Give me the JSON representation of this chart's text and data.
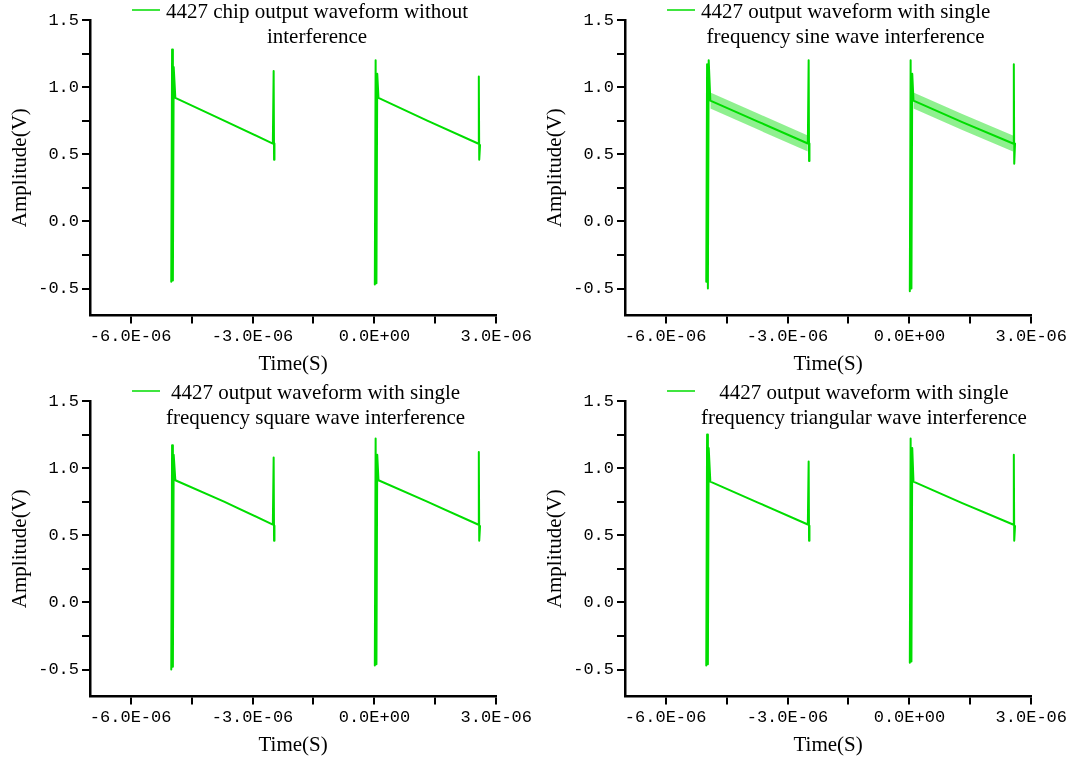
{
  "chart_data": [
    {
      "type": "line",
      "xlabel": "Time(S)",
      "ylabel": "Amplitude(V)",
      "legend": "top",
      "grid": false,
      "xlim": [
        -7e-06,
        3e-06
      ],
      "ylim": [
        -0.7,
        1.5
      ],
      "xticks": [
        {
          "value": -6e-06,
          "label": "-6.0E-06"
        },
        {
          "value": -4.5e-06,
          "label": null
        },
        {
          "value": -3e-06,
          "label": "-3.0E-06"
        },
        {
          "value": -1.5e-06,
          "label": null
        },
        {
          "value": 0,
          "label": "0.0E+00"
        },
        {
          "value": 1.5e-06,
          "label": null
        },
        {
          "value": 3e-06,
          "label": "3.0E-06"
        }
      ],
      "yticks": [
        {
          "value": -0.5,
          "label": "-0.5"
        },
        {
          "value": -0.25,
          "label": null
        },
        {
          "value": 0,
          "label": "0.0"
        },
        {
          "value": 0.25,
          "label": null
        },
        {
          "value": 0.5,
          "label": "0.5"
        },
        {
          "value": 0.75,
          "label": null
        },
        {
          "value": 1,
          "label": "1.0"
        },
        {
          "value": 1.25,
          "label": null
        },
        {
          "value": 1.5,
          "label": "1.5"
        }
      ],
      "series": [
        {
          "name": "4427 chip output waveform without interference",
          "color": "#00dd00",
          "x": [
            -5e-06,
            -4.98e-06,
            -4.96e-06,
            -4.94e-06,
            -4.9e-06,
            -3.7e-06,
            -2.5e-06,
            -2.48e-06,
            -2.47e-06,
            -2.46e-06,
            -1.2e-06,
            1e-08,
            3e-08,
            5e-08,
            7e-08,
            1e-07,
            1.3e-06,
            2.55e-06,
            2.57e-06,
            2.58e-06,
            2.6e-06
          ],
          "values": [
            -0.45,
            1.28,
            -0.44,
            1.15,
            0.92,
            0.75,
            0.58,
            1.12,
            0.46,
            0.58,
            null,
            -0.47,
            1.2,
            -0.46,
            1.1,
            0.92,
            0.75,
            0.58,
            1.08,
            0.46,
            0.57
          ]
        }
      ]
    },
    {
      "type": "line",
      "xlabel": "Time(S)",
      "ylabel": "Amplitude(V)",
      "legend": "top",
      "grid": false,
      "xlim": [
        -7e-06,
        3e-06
      ],
      "ylim": [
        -0.7,
        1.5
      ],
      "xticks": [
        {
          "value": -6e-06,
          "label": "-6.0E-06"
        },
        {
          "value": -4.5e-06,
          "label": null
        },
        {
          "value": -3e-06,
          "label": "-3.0E-06"
        },
        {
          "value": -1.5e-06,
          "label": null
        },
        {
          "value": 0,
          "label": "0.0E+00"
        },
        {
          "value": 1.5e-06,
          "label": null
        },
        {
          "value": 3e-06,
          "label": "3.0E-06"
        }
      ],
      "yticks": [
        {
          "value": -0.5,
          "label": "-0.5"
        },
        {
          "value": -0.25,
          "label": null
        },
        {
          "value": 0,
          "label": "0.0"
        },
        {
          "value": 0.25,
          "label": null
        },
        {
          "value": 0.5,
          "label": "0.5"
        },
        {
          "value": 0.75,
          "label": null
        },
        {
          "value": 1,
          "label": "1.0"
        },
        {
          "value": 1.25,
          "label": null
        },
        {
          "value": 1.5,
          "label": "1.5"
        }
      ],
      "series": [
        {
          "name": "4427 output waveform with single frequency sine wave interference",
          "color": "#00dd00",
          "x": [
            -5e-06,
            -4.98e-06,
            -4.96e-06,
            -4.94e-06,
            -4.9e-06,
            -3.7e-06,
            -2.5e-06,
            -2.48e-06,
            -2.47e-06,
            -2.46e-06,
            -1.2e-06,
            1e-08,
            3e-08,
            5e-08,
            7e-08,
            1e-07,
            1.3e-06,
            2.55e-06,
            2.57e-06,
            2.58e-06,
            2.6e-06
          ],
          "values": [
            -0.45,
            1.17,
            -0.5,
            1.2,
            0.9,
            0.74,
            0.58,
            1.2,
            0.45,
            0.58,
            null,
            -0.52,
            1.2,
            -0.5,
            1.1,
            0.9,
            0.74,
            0.58,
            1.17,
            0.43,
            0.58
          ],
          "lower": [
            null,
            null,
            null,
            null,
            0.84,
            0.68,
            0.52,
            null,
            null,
            null,
            null,
            null,
            null,
            null,
            null,
            0.84,
            0.68,
            0.52,
            null,
            null,
            null
          ],
          "upper": [
            null,
            null,
            null,
            null,
            0.96,
            0.8,
            0.64,
            null,
            null,
            null,
            null,
            null,
            null,
            null,
            null,
            0.96,
            0.8,
            0.64,
            null,
            null,
            null
          ]
        }
      ]
    },
    {
      "type": "line",
      "xlabel": "Time(S)",
      "ylabel": "Amplitude(V)",
      "legend": "top",
      "grid": false,
      "xlim": [
        -7e-06,
        3e-06
      ],
      "ylim": [
        -0.7,
        1.5
      ],
      "xticks": [
        {
          "value": -6e-06,
          "label": "-6.0E-06"
        },
        {
          "value": -4.5e-06,
          "label": null
        },
        {
          "value": -3e-06,
          "label": "-3.0E-06"
        },
        {
          "value": -1.5e-06,
          "label": null
        },
        {
          "value": 0,
          "label": "0.0E+00"
        },
        {
          "value": 1.5e-06,
          "label": null
        },
        {
          "value": 3e-06,
          "label": "3.0E-06"
        }
      ],
      "yticks": [
        {
          "value": -0.5,
          "label": "-0.5"
        },
        {
          "value": -0.25,
          "label": null
        },
        {
          "value": 0,
          "label": "0.0"
        },
        {
          "value": 0.25,
          "label": null
        },
        {
          "value": 0.5,
          "label": "0.5"
        },
        {
          "value": 0.75,
          "label": null
        },
        {
          "value": 1,
          "label": "1.0"
        },
        {
          "value": 1.25,
          "label": null
        },
        {
          "value": 1.5,
          "label": "1.5"
        }
      ],
      "series": [
        {
          "name": "4427 output waveform with single frequency square wave interference",
          "color": "#00dd00",
          "x": [
            -5e-06,
            -4.98e-06,
            -4.96e-06,
            -4.94e-06,
            -4.9e-06,
            -3.7e-06,
            -2.5e-06,
            -2.48e-06,
            -2.47e-06,
            -2.46e-06,
            -1.2e-06,
            1e-08,
            3e-08,
            5e-08,
            7e-08,
            1e-07,
            1.3e-06,
            2.55e-06,
            2.57e-06,
            2.58e-06,
            2.6e-06
          ],
          "values": [
            -0.5,
            1.17,
            -0.48,
            1.1,
            0.91,
            0.75,
            0.58,
            1.08,
            0.46,
            0.57,
            null,
            -0.47,
            1.22,
            -0.46,
            1.1,
            0.91,
            0.75,
            0.58,
            1.12,
            0.46,
            0.57
          ]
        }
      ]
    },
    {
      "type": "line",
      "xlabel": "Time(S)",
      "ylabel": "Amplitude(V)",
      "legend": "top",
      "grid": false,
      "xlim": [
        -7e-06,
        3e-06
      ],
      "ylim": [
        -0.7,
        1.5
      ],
      "xticks": [
        {
          "value": -6e-06,
          "label": "-6.0E-06"
        },
        {
          "value": -4.5e-06,
          "label": null
        },
        {
          "value": -3e-06,
          "label": "-3.0E-06"
        },
        {
          "value": -1.5e-06,
          "label": null
        },
        {
          "value": 0,
          "label": "0.0E+00"
        },
        {
          "value": 1.5e-06,
          "label": null
        },
        {
          "value": 3e-06,
          "label": "3.0E-06"
        }
      ],
      "yticks": [
        {
          "value": -0.5,
          "label": "-0.5"
        },
        {
          "value": -0.25,
          "label": null
        },
        {
          "value": 0,
          "label": "0.0"
        },
        {
          "value": 0.25,
          "label": null
        },
        {
          "value": 0.5,
          "label": "0.5"
        },
        {
          "value": 0.75,
          "label": null
        },
        {
          "value": 1,
          "label": "1.0"
        },
        {
          "value": 1.25,
          "label": null
        },
        {
          "value": 1.5,
          "label": "1.5"
        }
      ],
      "series": [
        {
          "name": "4427 output waveform with single frequency triangular wave interference",
          "color": "#00dd00",
          "x": [
            -5e-06,
            -4.98e-06,
            -4.96e-06,
            -4.94e-06,
            -4.9e-06,
            -3.7e-06,
            -2.5e-06,
            -2.48e-06,
            -2.47e-06,
            -2.46e-06,
            -1.2e-06,
            1e-08,
            3e-08,
            5e-08,
            7e-08,
            1e-07,
            1.3e-06,
            2.55e-06,
            2.57e-06,
            2.58e-06,
            2.6e-06
          ],
          "values": [
            -0.47,
            1.25,
            -0.46,
            1.15,
            0.9,
            0.74,
            0.58,
            1.05,
            0.46,
            0.57,
            null,
            -0.45,
            1.22,
            -0.44,
            1.15,
            0.9,
            0.74,
            0.58,
            1.1,
            0.46,
            0.57
          ]
        }
      ]
    }
  ]
}
